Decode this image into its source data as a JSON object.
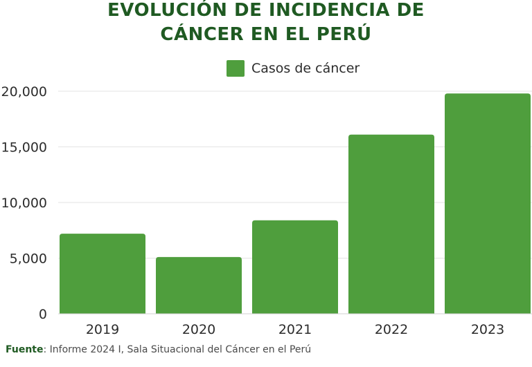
{
  "title_line1": "EVOLUCIÓN DE INCIDENCIA DE",
  "title_line2": "CÁNCER EN EL PERÚ",
  "source_label": "Fuente",
  "source_text": ": Informe 2024 I, Sala Situacional del Cáncer en el Perú",
  "colors": {
    "bar": "#4f9e3d",
    "title": "#1f5a22",
    "grid": "#e3e3e3"
  },
  "chart_data": {
    "type": "bar",
    "categories": [
      "2019",
      "2020",
      "2021",
      "2022",
      "2023"
    ],
    "series": [
      {
        "name": "Casos de cáncer",
        "values": [
          7200,
          5100,
          8400,
          16100,
          19800
        ]
      }
    ],
    "ylim": [
      0,
      20000
    ],
    "yticks": [
      0,
      5000,
      10000,
      15000,
      20000
    ],
    "ytick_labels": [
      "0",
      "5,000",
      "10,000",
      "15,000",
      "20,000"
    ],
    "grid": true,
    "legend": "top-center"
  }
}
